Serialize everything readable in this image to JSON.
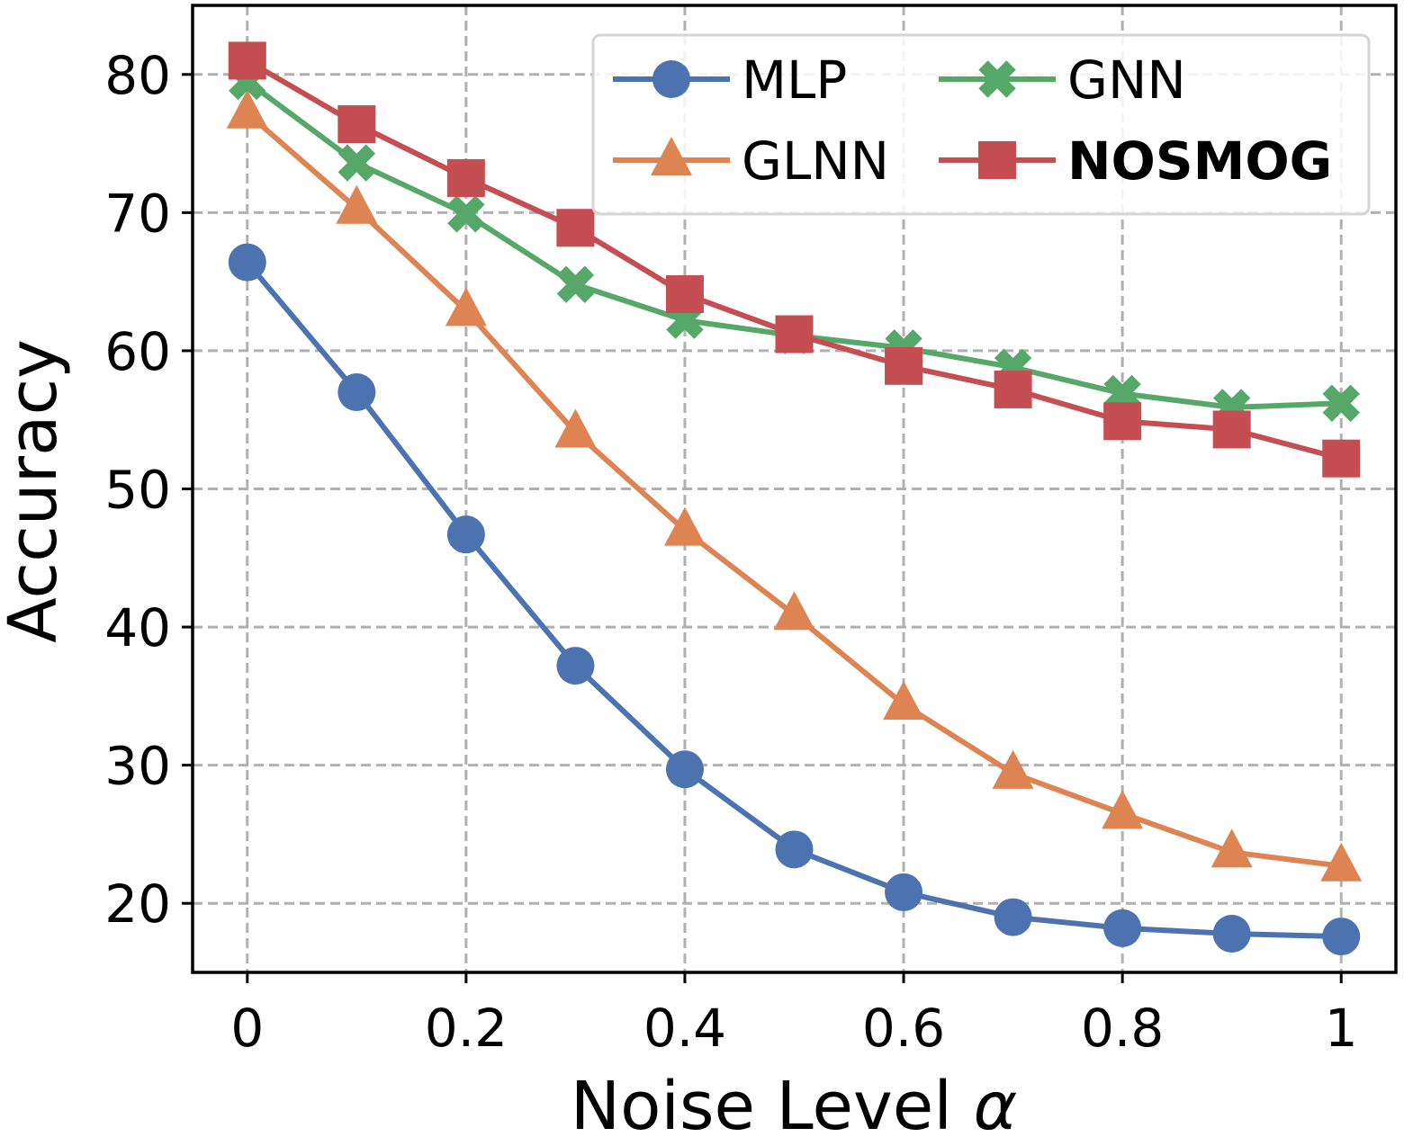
{
  "chart_data": {
    "type": "line",
    "title": "",
    "xlabel": "Noise Level",
    "xlabel_symbol": "α",
    "ylabel": "Accuracy",
    "x": [
      0,
      0.1,
      0.2,
      0.3,
      0.4,
      0.5,
      0.6,
      0.7,
      0.8,
      0.9,
      1.0
    ],
    "xlim": [
      -0.05,
      1.05
    ],
    "ylim": [
      15,
      85
    ],
    "x_ticks": [
      0,
      0.2,
      0.4,
      0.6,
      0.8,
      1
    ],
    "x_tick_labels": [
      "0",
      "0.2",
      "0.4",
      "0.6",
      "0.8",
      "1"
    ],
    "y_ticks": [
      20,
      30,
      40,
      50,
      60,
      70,
      80
    ],
    "y_tick_labels": [
      "20",
      "30",
      "40",
      "50",
      "60",
      "70",
      "80"
    ],
    "grid": true,
    "legend_position": "top-right",
    "legend_columns": 2,
    "series": [
      {
        "name": "MLP",
        "marker": "circle",
        "color": "#4c72b0",
        "bold": false,
        "values": [
          66.4,
          57.0,
          46.7,
          37.2,
          29.7,
          23.9,
          20.8,
          19.0,
          18.2,
          17.8,
          17.6
        ]
      },
      {
        "name": "GNN",
        "marker": "x",
        "color": "#55a868",
        "bold": false,
        "values": [
          79.5,
          73.6,
          69.9,
          64.8,
          62.2,
          61.1,
          60.2,
          58.8,
          56.9,
          55.9,
          56.2
        ]
      },
      {
        "name": "GLNN",
        "marker": "triangle",
        "color": "#dd8452",
        "bold": false,
        "values": [
          77.2,
          70.3,
          62.9,
          54.1,
          47.0,
          40.9,
          34.4,
          29.4,
          26.5,
          23.7,
          22.7
        ]
      },
      {
        "name": "NOSMOG",
        "marker": "square",
        "color": "#c44e52",
        "bold": true,
        "values": [
          81.0,
          76.4,
          72.5,
          68.9,
          64.1,
          61.2,
          58.9,
          57.2,
          54.9,
          54.3,
          52.2
        ]
      }
    ]
  }
}
